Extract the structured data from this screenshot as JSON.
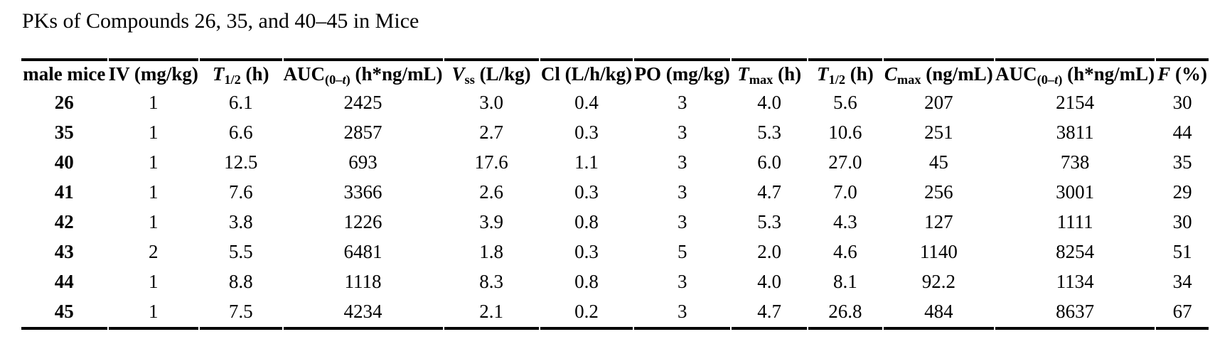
{
  "title": "PKs of Compounds 26, 35, and 40–45 in Mice",
  "table": {
    "header": {
      "male_mice": {
        "text": "male mice"
      },
      "iv_dose": {
        "text": "IV (mg/kg)"
      },
      "t_half_iv": {
        "main": "T",
        "sub": "1/2",
        "unit": " (h)"
      },
      "auc_iv": {
        "main": "AUC",
        "sub_pre": "(0–",
        "sub_it": "t",
        "sub_post": ")",
        "unit": " (h*ng/mL)"
      },
      "vss": {
        "main": "V",
        "sub": "ss",
        "unit": " (L/kg)"
      },
      "cl": {
        "text": "Cl (L/h/kg)"
      },
      "po_dose": {
        "text": "PO (mg/kg)"
      },
      "tmax": {
        "main": "T",
        "sub": "max",
        "unit": " (h)"
      },
      "t_half_po": {
        "main": "T",
        "sub": "1/2",
        "unit": " (h)"
      },
      "cmax": {
        "main": "C",
        "sub": "max",
        "unit": " (ng/mL)"
      },
      "auc_po": {
        "main": "AUC",
        "sub_pre": "(0–",
        "sub_it": "t",
        "sub_post": ")",
        "unit": " (h*ng/mL)"
      },
      "f_percent": {
        "main": "F",
        "unit": " (%)"
      }
    },
    "rows": [
      {
        "cells": [
          "26",
          "1",
          "6.1",
          "2425",
          "3.0",
          "0.4",
          "3",
          "4.0",
          "5.6",
          "207",
          "2154",
          "30"
        ]
      },
      {
        "cells": [
          "35",
          "1",
          "6.6",
          "2857",
          "2.7",
          "0.3",
          "3",
          "5.3",
          "10.6",
          "251",
          "3811",
          "44"
        ]
      },
      {
        "cells": [
          "40",
          "1",
          "12.5",
          "693",
          "17.6",
          "1.1",
          "3",
          "6.0",
          "27.0",
          "45",
          "738",
          "35"
        ]
      },
      {
        "cells": [
          "41",
          "1",
          "7.6",
          "3366",
          "2.6",
          "0.3",
          "3",
          "4.7",
          "7.0",
          "256",
          "3001",
          "29"
        ]
      },
      {
        "cells": [
          "42",
          "1",
          "3.8",
          "1226",
          "3.9",
          "0.8",
          "3",
          "5.3",
          "4.3",
          "127",
          "1111",
          "30"
        ]
      },
      {
        "cells": [
          "43",
          "2",
          "5.5",
          "6481",
          "1.8",
          "0.3",
          "5",
          "2.0",
          "4.6",
          "1140",
          "8254",
          "51"
        ]
      },
      {
        "cells": [
          "44",
          "1",
          "8.8",
          "1118",
          "8.3",
          "0.8",
          "3",
          "4.0",
          "8.1",
          "92.2",
          "1134",
          "34"
        ]
      },
      {
        "cells": [
          "45",
          "1",
          "7.5",
          "4234",
          "2.1",
          "0.2",
          "3",
          "4.7",
          "26.8",
          "484",
          "8637",
          "67"
        ]
      }
    ]
  }
}
